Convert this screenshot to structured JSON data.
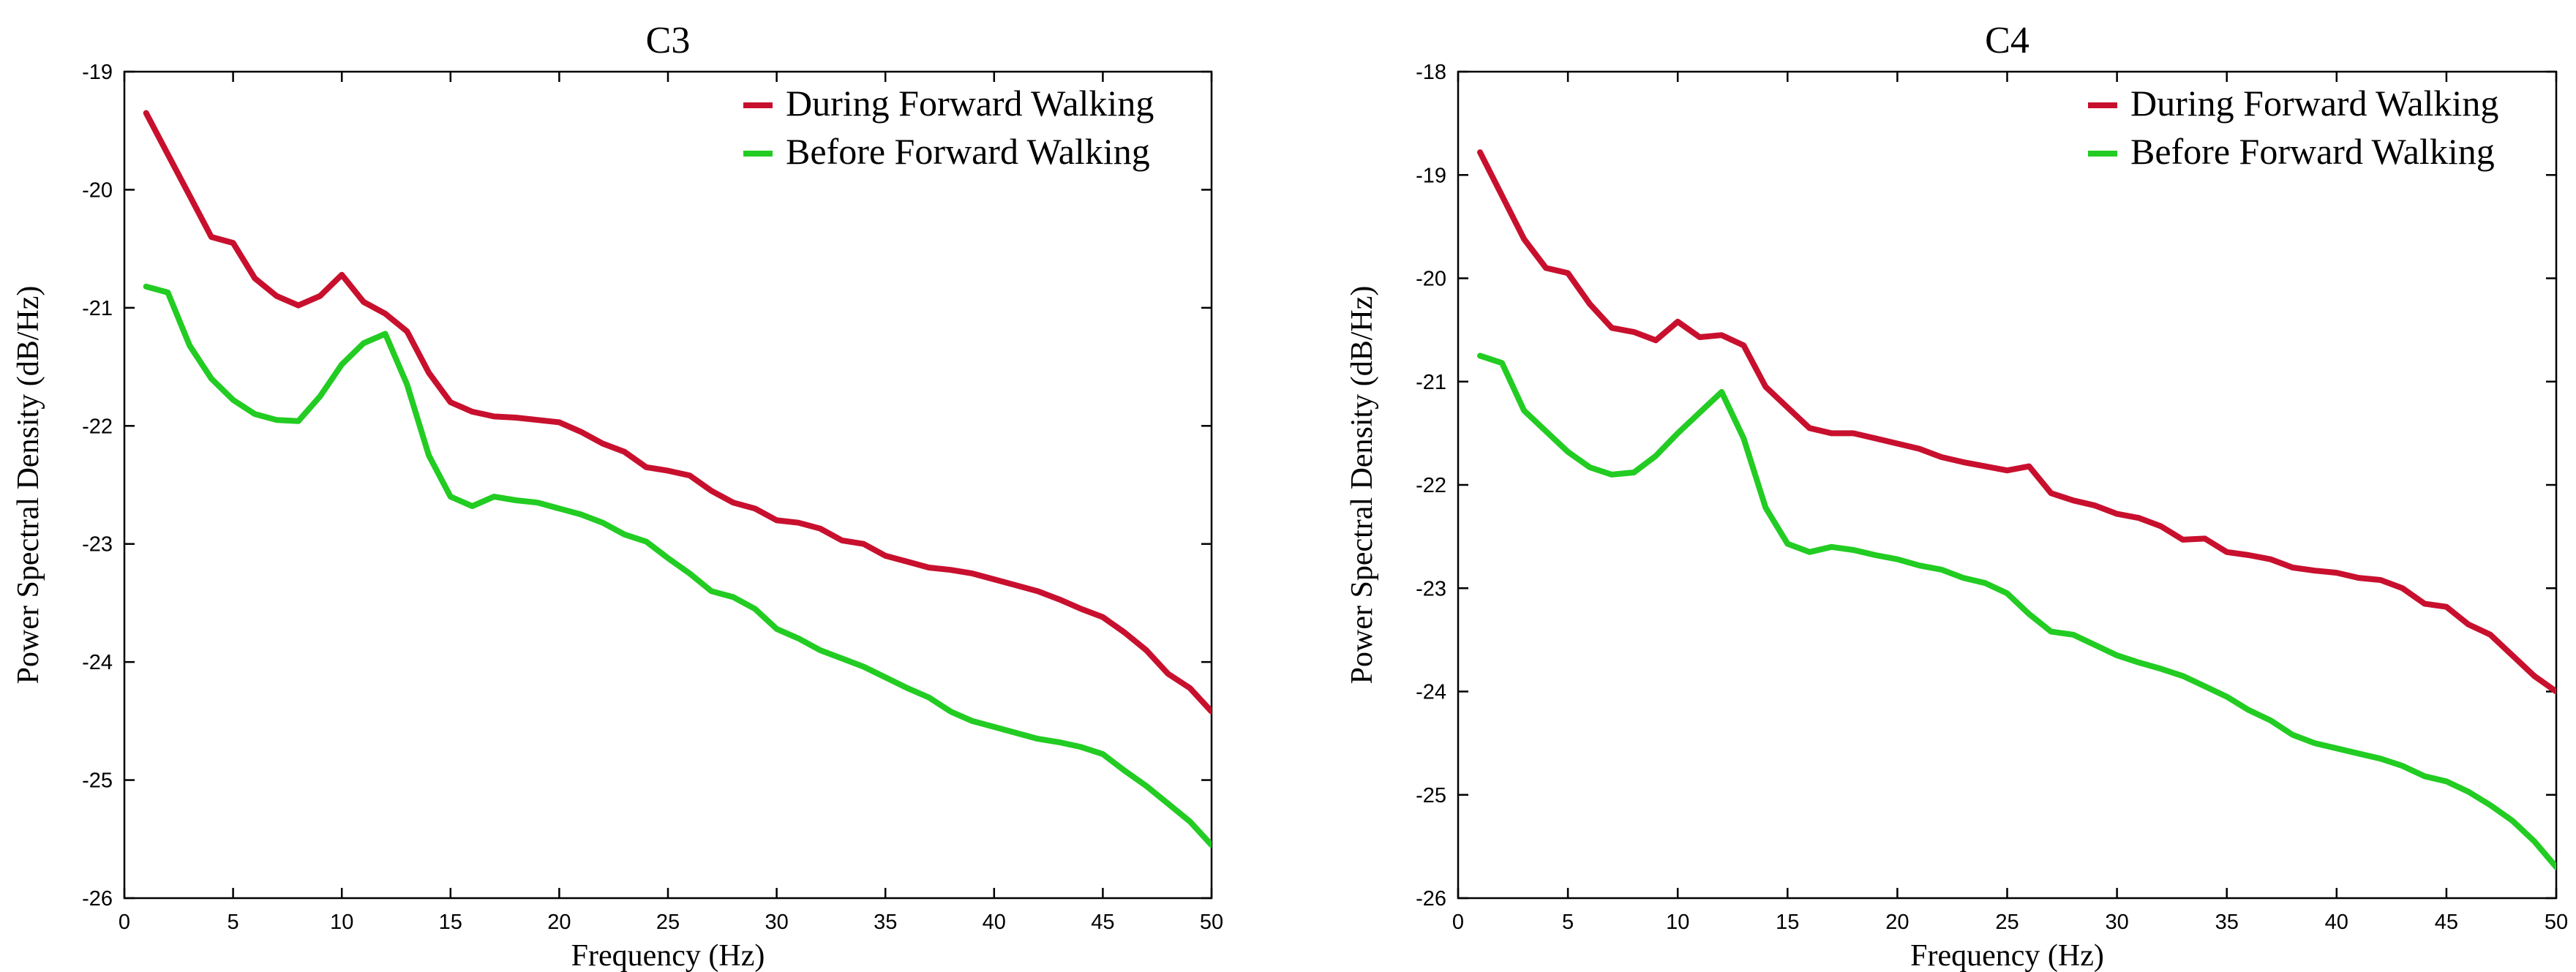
{
  "chart_data": [
    {
      "type": "line",
      "title": "C3",
      "xlabel": "Frequency (Hz)",
      "ylabel": "Power Spectral Density (dB/Hz)",
      "xlim": [
        0,
        50
      ],
      "ylim": [
        -26,
        -19
      ],
      "xticks": [
        0,
        5,
        10,
        15,
        20,
        25,
        30,
        35,
        40,
        45,
        50
      ],
      "yticks": [
        -19,
        -20,
        -21,
        -22,
        -23,
        -24,
        -25,
        -26
      ],
      "grid": false,
      "legend": "top-right",
      "series": [
        {
          "name": "During Forward Walking",
          "color": "#c8102e",
          "x": [
            1,
            2,
            3,
            4,
            5,
            6,
            7,
            8,
            9,
            10,
            11,
            12,
            13,
            14,
            15,
            16,
            17,
            18,
            19,
            20,
            21,
            22,
            23,
            24,
            25,
            26,
            27,
            28,
            29,
            30,
            31,
            32,
            33,
            34,
            35,
            36,
            37,
            38,
            39,
            40,
            41,
            42,
            43,
            44,
            45,
            46,
            47,
            48,
            49,
            50
          ],
          "y": [
            -19.35,
            -19.7,
            -20.05,
            -20.4,
            -20.45,
            -20.75,
            -20.9,
            -20.98,
            -20.9,
            -20.72,
            -20.95,
            -21.05,
            -21.2,
            -21.55,
            -21.8,
            -21.88,
            -21.92,
            -21.93,
            -21.95,
            -21.97,
            -22.05,
            -22.15,
            -22.22,
            -22.35,
            -22.38,
            -22.42,
            -22.55,
            -22.65,
            -22.7,
            -22.8,
            -22.82,
            -22.87,
            -22.97,
            -23.0,
            -23.1,
            -23.15,
            -23.2,
            -23.22,
            -23.25,
            -23.3,
            -23.35,
            -23.4,
            -23.47,
            -23.55,
            -23.62,
            -23.75,
            -23.9,
            -24.1,
            -24.22,
            -24.42
          ]
        },
        {
          "name": "Before Forward Walking",
          "color": "#22cc22",
          "x": [
            1,
            2,
            3,
            4,
            5,
            6,
            7,
            8,
            9,
            10,
            11,
            12,
            13,
            14,
            15,
            16,
            17,
            18,
            19,
            20,
            21,
            22,
            23,
            24,
            25,
            26,
            27,
            28,
            29,
            30,
            31,
            32,
            33,
            34,
            35,
            36,
            37,
            38,
            39,
            40,
            41,
            42,
            43,
            44,
            45,
            46,
            47,
            48,
            49,
            50
          ],
          "y": [
            -20.82,
            -20.87,
            -21.32,
            -21.6,
            -21.78,
            -21.9,
            -21.95,
            -21.96,
            -21.75,
            -21.48,
            -21.3,
            -21.22,
            -21.65,
            -22.25,
            -22.6,
            -22.68,
            -22.6,
            -22.63,
            -22.65,
            -22.7,
            -22.75,
            -22.82,
            -22.92,
            -22.98,
            -23.12,
            -23.25,
            -23.4,
            -23.45,
            -23.55,
            -23.72,
            -23.8,
            -23.9,
            -23.97,
            -24.04,
            -24.13,
            -24.22,
            -24.3,
            -24.42,
            -24.5,
            -24.55,
            -24.6,
            -24.65,
            -24.68,
            -24.72,
            -24.78,
            -24.92,
            -25.05,
            -25.2,
            -25.35,
            -25.55
          ]
        }
      ]
    },
    {
      "type": "line",
      "title": "C4",
      "xlabel": "Frequency (Hz)",
      "ylabel": "Power Spectral Density (dB/Hz)",
      "xlim": [
        0,
        50
      ],
      "ylim": [
        -26,
        -18
      ],
      "xticks": [
        0,
        5,
        10,
        15,
        20,
        25,
        30,
        35,
        40,
        45,
        50
      ],
      "yticks": [
        -18,
        -19,
        -20,
        -21,
        -22,
        -23,
        -24,
        -25,
        -26
      ],
      "grid": false,
      "legend": "top-right",
      "series": [
        {
          "name": "During Forward Walking",
          "color": "#c8102e",
          "x": [
            1,
            2,
            3,
            4,
            5,
            6,
            7,
            8,
            9,
            10,
            11,
            12,
            13,
            14,
            15,
            16,
            17,
            18,
            19,
            20,
            21,
            22,
            23,
            24,
            25,
            26,
            27,
            28,
            29,
            30,
            31,
            32,
            33,
            34,
            35,
            36,
            37,
            38,
            39,
            40,
            41,
            42,
            43,
            44,
            45,
            46,
            47,
            48,
            49,
            50
          ],
          "y": [
            -18.78,
            -19.2,
            -19.62,
            -19.9,
            -19.95,
            -20.25,
            -20.48,
            -20.52,
            -20.6,
            -20.42,
            -20.57,
            -20.55,
            -20.65,
            -21.05,
            -21.25,
            -21.45,
            -21.5,
            -21.5,
            -21.55,
            -21.6,
            -21.65,
            -21.73,
            -21.78,
            -21.82,
            -21.86,
            -21.82,
            -22.08,
            -22.15,
            -22.2,
            -22.28,
            -22.32,
            -22.4,
            -22.53,
            -22.52,
            -22.65,
            -22.68,
            -22.72,
            -22.8,
            -22.83,
            -22.85,
            -22.9,
            -22.92,
            -23.0,
            -23.15,
            -23.18,
            -23.35,
            -23.45,
            -23.65,
            -23.85,
            -24.0
          ]
        },
        {
          "name": "Before Forward Walking",
          "color": "#22cc22",
          "x": [
            1,
            2,
            3,
            4,
            5,
            6,
            7,
            8,
            9,
            10,
            11,
            12,
            13,
            14,
            15,
            16,
            17,
            18,
            19,
            20,
            21,
            22,
            23,
            24,
            25,
            26,
            27,
            28,
            29,
            30,
            31,
            32,
            33,
            34,
            35,
            36,
            37,
            38,
            39,
            40,
            41,
            42,
            43,
            44,
            45,
            46,
            47,
            48,
            49,
            50
          ],
          "y": [
            -20.75,
            -20.82,
            -21.28,
            -21.48,
            -21.68,
            -21.83,
            -21.9,
            -21.88,
            -21.72,
            -21.5,
            -21.3,
            -21.1,
            -21.55,
            -22.22,
            -22.57,
            -22.65,
            -22.6,
            -22.63,
            -22.68,
            -22.72,
            -22.78,
            -22.82,
            -22.9,
            -22.95,
            -23.05,
            -23.25,
            -23.42,
            -23.45,
            -23.55,
            -23.65,
            -23.72,
            -23.78,
            -23.85,
            -23.95,
            -24.05,
            -24.18,
            -24.28,
            -24.42,
            -24.5,
            -24.55,
            -24.6,
            -24.65,
            -24.72,
            -24.82,
            -24.87,
            -24.97,
            -25.1,
            -25.25,
            -25.45,
            -25.7
          ]
        }
      ]
    }
  ]
}
